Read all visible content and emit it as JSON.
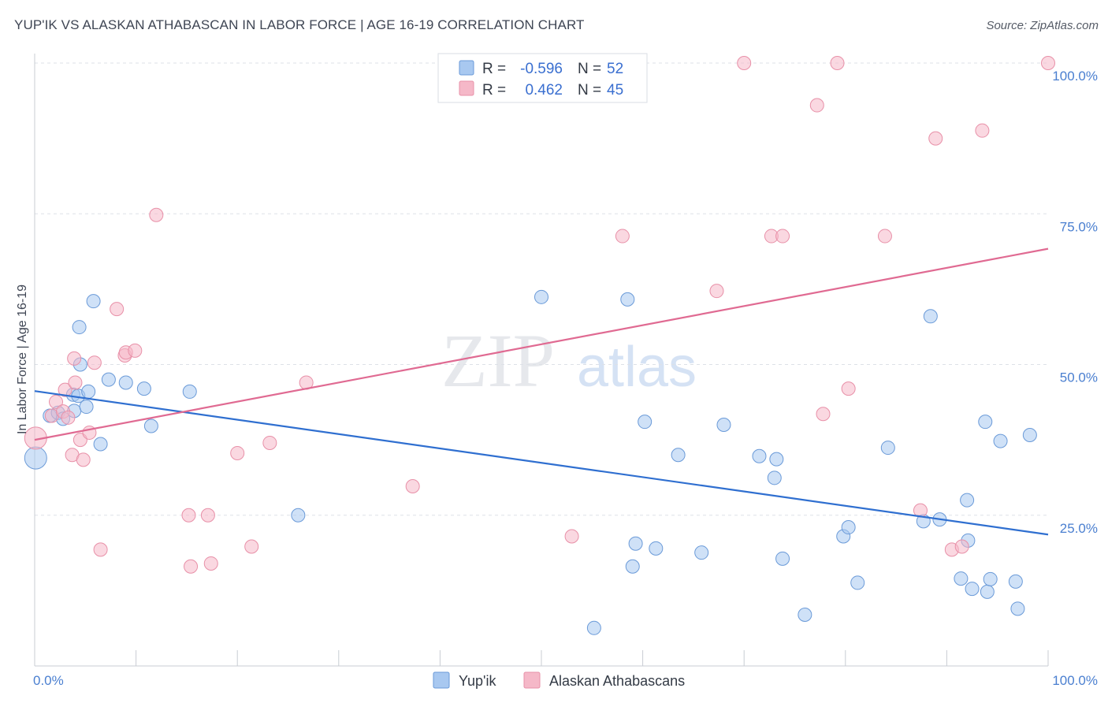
{
  "header": {
    "title": "YUP'IK VS ALASKAN ATHABASCAN IN LABOR FORCE | AGE 16-19 CORRELATION CHART",
    "source": "Source: ZipAtlas.com"
  },
  "watermark": {
    "zip": "ZIP",
    "atlas": "atlas"
  },
  "legend": {
    "rows": [
      {
        "r_label": "R =",
        "r_value": "-0.596",
        "n_label": "N =",
        "n_value": "52",
        "color": "#a8c8f0"
      },
      {
        "r_label": "R =",
        "r_value": "0.462",
        "n_label": "N =",
        "n_value": "45",
        "color": "#f5b8c8"
      }
    ]
  },
  "bottom_legend": [
    {
      "label": "Yup'ik",
      "color": "#a8c8f0"
    },
    {
      "label": "Alaskan Athabascans",
      "color": "#f5b8c8"
    }
  ],
  "chart_data": {
    "type": "scatter",
    "title": "YUP'IK VS ALASKAN ATHABASCAN IN LABOR FORCE | AGE 16-19 CORRELATION CHART",
    "xlabel": "",
    "ylabel": "In Labor Force | Age 16-19",
    "xlim": [
      0,
      100
    ],
    "ylim": [
      0,
      100
    ],
    "x_tick_labels": [
      "0.0%",
      "100.0%"
    ],
    "y_tick_labels": [
      {
        "value": 100,
        "label": "100.0%"
      },
      {
        "value": 75,
        "label": "75.0%"
      },
      {
        "value": 50,
        "label": "50.0%"
      },
      {
        "value": 25,
        "label": "25.0%"
      }
    ],
    "grid": true,
    "series": [
      {
        "name": "Yup'ik",
        "color": "#a8c8f0",
        "stroke": "#6a9ad8",
        "line_color": "#2f6fd0",
        "trend": {
          "x0": 0,
          "y0": 45.6,
          "x1": 100,
          "y1": 21.8
        },
        "points": [
          [
            0.1,
            34.5
          ],
          [
            1.5,
            41.5
          ],
          [
            2.3,
            42
          ],
          [
            2.8,
            41
          ],
          [
            3.8,
            45
          ],
          [
            3.9,
            42.3
          ],
          [
            4.3,
            44.8
          ],
          [
            4.4,
            56.2
          ],
          [
            4.5,
            50
          ],
          [
            5.1,
            43
          ],
          [
            5.3,
            45.5
          ],
          [
            5.8,
            60.5
          ],
          [
            6.5,
            36.8
          ],
          [
            7.3,
            47.5
          ],
          [
            9,
            47
          ],
          [
            10.8,
            46
          ],
          [
            11.5,
            39.8
          ],
          [
            15.3,
            45.5
          ],
          [
            26,
            25
          ],
          [
            50,
            61.2
          ],
          [
            55.2,
            6.3
          ],
          [
            58.5,
            60.8
          ],
          [
            59,
            16.5
          ],
          [
            59.3,
            20.3
          ],
          [
            60.2,
            40.5
          ],
          [
            61.3,
            19.5
          ],
          [
            63.5,
            35
          ],
          [
            65.8,
            18.8
          ],
          [
            68,
            40
          ],
          [
            71.5,
            34.8
          ],
          [
            73,
            31.2
          ],
          [
            73.2,
            34.3
          ],
          [
            73.8,
            17.8
          ],
          [
            76,
            8.5
          ],
          [
            79.8,
            21.5
          ],
          [
            80.3,
            23
          ],
          [
            81.2,
            13.8
          ],
          [
            84.2,
            36.2
          ],
          [
            87.7,
            24
          ],
          [
            88.4,
            58
          ],
          [
            89.3,
            24.3
          ],
          [
            91.4,
            14.5
          ],
          [
            92,
            27.5
          ],
          [
            92.1,
            20.8
          ],
          [
            92.5,
            12.8
          ],
          [
            93.8,
            40.5
          ],
          [
            94,
            12.3
          ],
          [
            94.3,
            14.4
          ],
          [
            95.3,
            37.3
          ],
          [
            96.8,
            14
          ],
          [
            97,
            9.5
          ],
          [
            98.2,
            38.3
          ]
        ]
      },
      {
        "name": "Alaskan Athabascans",
        "color": "#f5b8c8",
        "stroke": "#e890a8",
        "line_color": "#e06a92",
        "trend": {
          "x0": 0,
          "y0": 37.5,
          "x1": 100,
          "y1": 69.2
        },
        "points": [
          [
            0.1,
            37.8
          ],
          [
            1.7,
            41.5
          ],
          [
            2.1,
            43.8
          ],
          [
            2.8,
            42.2
          ],
          [
            3,
            45.8
          ],
          [
            3.3,
            41.2
          ],
          [
            3.7,
            35
          ],
          [
            3.9,
            51
          ],
          [
            4,
            47
          ],
          [
            4.5,
            37.5
          ],
          [
            4.8,
            34.2
          ],
          [
            5.4,
            38.7
          ],
          [
            5.9,
            50.3
          ],
          [
            6.5,
            19.3
          ],
          [
            8.1,
            59.2
          ],
          [
            8.9,
            51.5
          ],
          [
            9,
            52
          ],
          [
            9.9,
            52.3
          ],
          [
            12,
            74.8
          ],
          [
            15.2,
            25
          ],
          [
            15.4,
            16.5
          ],
          [
            17.1,
            25
          ],
          [
            17.4,
            17
          ],
          [
            20,
            35.3
          ],
          [
            21.4,
            19.8
          ],
          [
            23.2,
            37
          ],
          [
            26.8,
            47
          ],
          [
            37.3,
            29.8
          ],
          [
            53,
            21.5
          ],
          [
            58,
            71.3
          ],
          [
            67.3,
            62.2
          ],
          [
            70,
            100
          ],
          [
            72.7,
            71.3
          ],
          [
            73.8,
            71.3
          ],
          [
            77.2,
            93
          ],
          [
            77.8,
            41.8
          ],
          [
            79.2,
            100
          ],
          [
            80.3,
            46
          ],
          [
            83.9,
            71.3
          ],
          [
            87.4,
            25.8
          ],
          [
            88.9,
            87.5
          ],
          [
            90.5,
            19.3
          ],
          [
            91.5,
            19.8
          ],
          [
            93.5,
            88.8
          ],
          [
            100,
            100
          ]
        ]
      }
    ]
  }
}
